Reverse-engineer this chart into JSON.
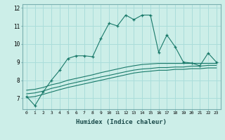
{
  "xlabel": "Humidex (Indice chaleur)",
  "background_color": "#cceee8",
  "grid_color": "#aaddda",
  "line_color": "#1a7a6a",
  "xlim": [
    -0.5,
    23.5
  ],
  "ylim": [
    6.4,
    12.2
  ],
  "xticks": [
    0,
    1,
    2,
    3,
    4,
    5,
    6,
    7,
    8,
    9,
    10,
    11,
    12,
    13,
    14,
    15,
    16,
    17,
    18,
    19,
    20,
    21,
    22,
    23
  ],
  "yticks": [
    7,
    8,
    9,
    10,
    11,
    12
  ],
  "line1_x": [
    0,
    1,
    2,
    3,
    4,
    5,
    6,
    7,
    8,
    9,
    10,
    11,
    12,
    13,
    14,
    15,
    16,
    17,
    18,
    19,
    20,
    21,
    22,
    23
  ],
  "line1_y": [
    7.1,
    6.6,
    7.35,
    8.0,
    8.55,
    9.2,
    9.35,
    9.35,
    9.3,
    10.3,
    11.15,
    11.0,
    11.6,
    11.35,
    11.6,
    11.6,
    9.55,
    10.5,
    9.85,
    9.0,
    8.95,
    8.8,
    9.5,
    9.0
  ],
  "line2_x": [
    0,
    1,
    2,
    3,
    4,
    5,
    6,
    7,
    8,
    9,
    10,
    11,
    12,
    13,
    14,
    15,
    16,
    17,
    18,
    19,
    20,
    21,
    22,
    23
  ],
  "line2_y": [
    7.45,
    7.5,
    7.6,
    7.75,
    7.85,
    8.0,
    8.1,
    8.2,
    8.3,
    8.42,
    8.52,
    8.62,
    8.72,
    8.8,
    8.87,
    8.9,
    8.93,
    8.93,
    8.93,
    8.93,
    8.93,
    8.93,
    8.93,
    8.93
  ],
  "line3_x": [
    0,
    1,
    2,
    3,
    4,
    5,
    6,
    7,
    8,
    9,
    10,
    11,
    12,
    13,
    14,
    15,
    16,
    17,
    18,
    19,
    20,
    21,
    22,
    23
  ],
  "line3_y": [
    7.25,
    7.3,
    7.4,
    7.55,
    7.65,
    7.78,
    7.88,
    7.98,
    8.08,
    8.18,
    8.27,
    8.37,
    8.47,
    8.56,
    8.62,
    8.65,
    8.7,
    8.7,
    8.73,
    8.73,
    8.78,
    8.78,
    8.82,
    8.82
  ],
  "line4_x": [
    0,
    1,
    2,
    3,
    4,
    5,
    6,
    7,
    8,
    9,
    10,
    11,
    12,
    13,
    14,
    15,
    16,
    17,
    18,
    19,
    20,
    21,
    22,
    23
  ],
  "line4_y": [
    7.05,
    7.1,
    7.22,
    7.35,
    7.48,
    7.6,
    7.7,
    7.8,
    7.9,
    8.0,
    8.1,
    8.2,
    8.3,
    8.4,
    8.46,
    8.5,
    8.55,
    8.55,
    8.6,
    8.6,
    8.64,
    8.64,
    8.68,
    8.68
  ]
}
